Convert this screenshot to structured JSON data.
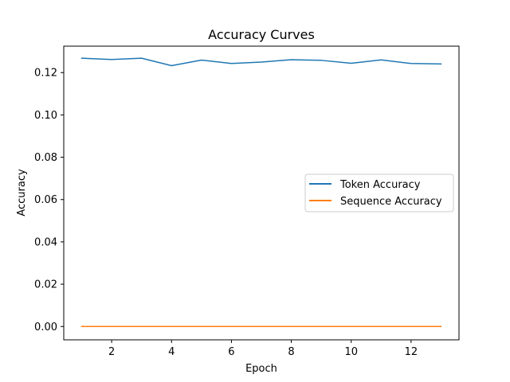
{
  "chart_data": {
    "type": "line",
    "title": "Accuracy Curves",
    "xlabel": "Epoch",
    "ylabel": "Accuracy",
    "x": [
      1,
      2,
      3,
      4,
      5,
      6,
      7,
      8,
      9,
      10,
      11,
      12,
      13
    ],
    "xlim": [
      0.4,
      13.6
    ],
    "ylim": [
      -0.0063,
      0.1325
    ],
    "xticks": [
      2,
      4,
      6,
      8,
      10,
      12
    ],
    "xtick_labels": [
      "2",
      "4",
      "6",
      "8",
      "10",
      "12"
    ],
    "yticks": [
      0.0,
      0.02,
      0.04,
      0.06,
      0.08,
      0.1,
      0.12
    ],
    "ytick_labels": [
      "0.00",
      "0.02",
      "0.04",
      "0.06",
      "0.08",
      "0.10",
      "0.12"
    ],
    "grid": false,
    "legend_position": "center-right",
    "series": [
      {
        "name": "Token Accuracy",
        "color": "#1f77b4",
        "values": [
          0.1268,
          0.1262,
          0.1268,
          0.1233,
          0.1259,
          0.1243,
          0.125,
          0.1261,
          0.1258,
          0.1244,
          0.126,
          0.1243,
          0.1241
        ]
      },
      {
        "name": "Sequence Accuracy",
        "color": "#ff7f0e",
        "values": [
          0,
          0,
          0,
          0,
          0,
          0,
          0,
          0,
          0,
          0,
          0,
          0,
          0
        ]
      }
    ]
  }
}
